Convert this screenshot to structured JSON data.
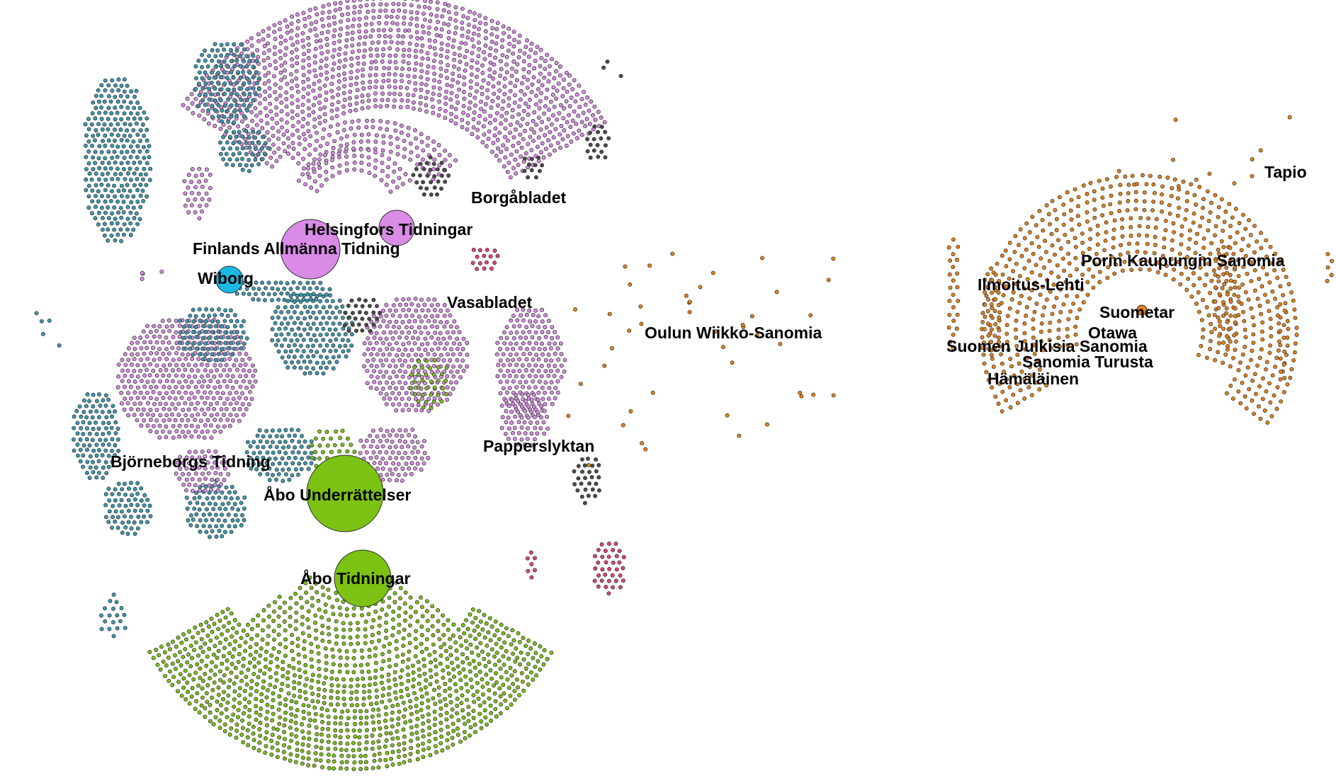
{
  "colors": {
    "swedish_purple": "#d98be6",
    "swedish_green": "#7cc214",
    "swedish_blue": "#1bb8e4",
    "swedish_teal": "#3a9ab0",
    "finnish_orange": "#e3841a",
    "dark": "#4a4a4a",
    "red": "#e0456a",
    "node_stroke": "#2a2a2a",
    "background": "#ffffff"
  },
  "hubs": [
    {
      "id": "finlands-allmanna-tidning",
      "color": "swedish_purple"
    },
    {
      "id": "helsingfors-tidningar",
      "color": "swedish_purple"
    },
    {
      "id": "wiborg",
      "color": "swedish_blue"
    },
    {
      "id": "abo-underrattelser",
      "color": "swedish_green"
    },
    {
      "id": "abo-tidningar",
      "color": "swedish_green"
    },
    {
      "id": "suometar",
      "color": "finnish_orange"
    }
  ],
  "labels": [
    {
      "id": "borgabladet",
      "text": "Borgåbladet"
    },
    {
      "id": "helsingfors-tidningar",
      "text": "Helsingfors Tidningar"
    },
    {
      "id": "finlands-allmanna-tidning",
      "text": "Finlands Allmänna Tidning"
    },
    {
      "id": "wiborg",
      "text": "Wiborg"
    },
    {
      "id": "vasabladet",
      "text": "Vasabladet"
    },
    {
      "id": "oulun-wiikko-sanomia",
      "text": "Oulun Wiikko-Sanomia"
    },
    {
      "id": "papperslyktan",
      "text": "Papperslyktan"
    },
    {
      "id": "bjorneborgs-tidning",
      "text": "Björneborgs Tidning"
    },
    {
      "id": "abo-underrattelser",
      "text": "Åbo Underrättelser"
    },
    {
      "id": "abo-tidningar",
      "text": "Åbo Tidningar"
    },
    {
      "id": "tapio",
      "text": "Tapio"
    },
    {
      "id": "porin-kaupungin-sanomia",
      "text": "Porin Kaupungin Sanomia"
    },
    {
      "id": "ilmoitus-lehti",
      "text": "Ilmoitus-Lehti"
    },
    {
      "id": "suometar",
      "text": "Suometar"
    },
    {
      "id": "otawa",
      "text": "Otawa"
    },
    {
      "id": "suomen-julkisia-sanomia",
      "text": "Suomen Julkisia Sanomia"
    },
    {
      "id": "sanomia-turusta",
      "text": "Sanomia Turusta"
    },
    {
      "id": "hamalainen",
      "text": "Hämäläinen"
    }
  ]
}
